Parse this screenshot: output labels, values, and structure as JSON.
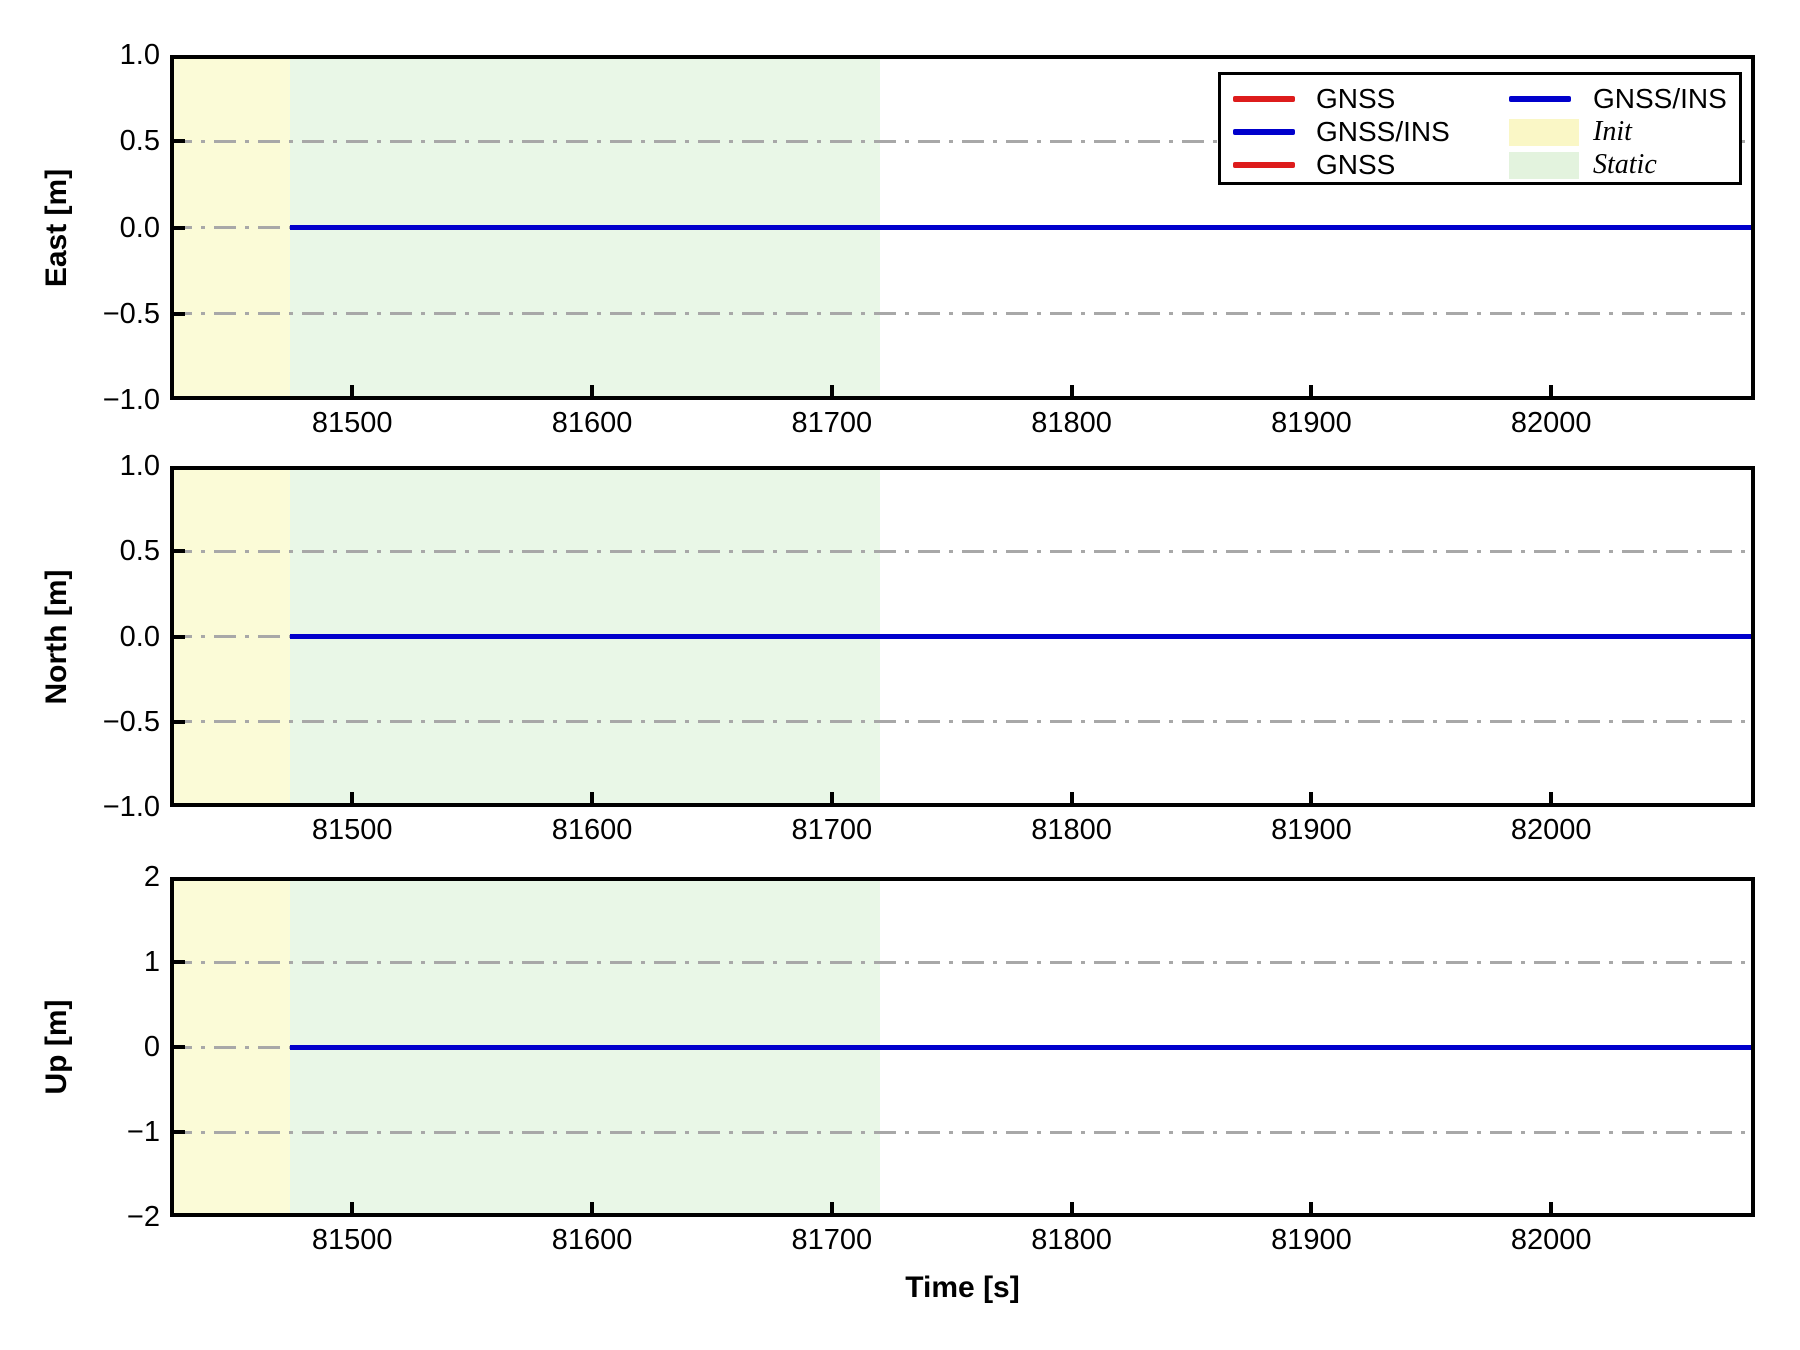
{
  "figure": {
    "background": "#ffffff",
    "colors": {
      "gnss_red": "#dd1c1c",
      "gnss_ins_blue": "#0000cc",
      "init_fill": "#fbfbd7",
      "static_fill": "#e9f7e7",
      "grid_gray": "#a8a8a8",
      "axis_black": "#000000"
    }
  },
  "chart_data": {
    "type": "line",
    "xlabel": "Time [s]",
    "xlim": [
      81424,
      82085
    ],
    "xticks": [
      81500,
      81600,
      81700,
      81800,
      81900,
      82000
    ],
    "xtick_labels": [
      "81500",
      "81600",
      "81700",
      "81800",
      "81900",
      "82000"
    ],
    "grid": "dash-dot horizontal",
    "regions": [
      {
        "name": "Init",
        "xstart": 81424,
        "xend": 81474,
        "color": "#fbfbd7"
      },
      {
        "name": "Static",
        "xstart": 81474,
        "xend": 81720,
        "color": "#e9f7e7"
      }
    ],
    "series": [
      {
        "name": "GNSS",
        "color": "#dd1c1c",
        "xstart": 81474,
        "xend": 82085,
        "value": 0,
        "note": "hidden beneath GNSS/INS line"
      },
      {
        "name": "GNSS/INS",
        "color": "#0000cc",
        "xstart": 81474,
        "xend": 82085,
        "value": 0
      }
    ],
    "subplots": [
      {
        "key": "east",
        "ylabel": "East [m]",
        "ylim": [
          -1.0,
          1.0
        ],
        "yticks": [
          1.0,
          0.5,
          0.0,
          -0.5,
          -1.0
        ],
        "ytick_labels": [
          "1.0",
          "0.5",
          "0.0",
          "−0.5",
          "−1.0"
        ],
        "gridlines": [
          0.5,
          0.0,
          -0.5
        ]
      },
      {
        "key": "north",
        "ylabel": "North [m]",
        "ylim": [
          -1.0,
          1.0
        ],
        "yticks": [
          1.0,
          0.5,
          0.0,
          -0.5,
          -1.0
        ],
        "ytick_labels": [
          "1.0",
          "0.5",
          "0.0",
          "−0.5",
          "−1.0"
        ],
        "gridlines": [
          0.5,
          0.0,
          -0.5
        ]
      },
      {
        "key": "up",
        "ylabel": "Up [m]",
        "ylim": [
          -2,
          2
        ],
        "yticks": [
          2,
          1,
          0,
          -1,
          -2
        ],
        "ytick_labels": [
          "2",
          "1",
          "0",
          "−1",
          "−2"
        ],
        "gridlines": [
          1,
          0,
          -1
        ]
      }
    ],
    "legend": {
      "position": "upper right of first subplot",
      "columns": 2,
      "entries": [
        {
          "label": "GNSS",
          "type": "line",
          "color": "#dd1c1c",
          "italic": false
        },
        {
          "label": "GNSS/INS",
          "type": "line",
          "color": "#0000cc",
          "italic": false
        },
        {
          "label": "GNSS",
          "type": "line",
          "color": "#dd1c1c",
          "italic": false
        },
        {
          "label": "GNSS/INS",
          "type": "line",
          "color": "#0000cc",
          "italic": false
        },
        {
          "label": "Init",
          "type": "patch",
          "color": "#faf7c6",
          "italic": true
        },
        {
          "label": "Static",
          "type": "patch",
          "color": "#e3f3de",
          "italic": true
        }
      ]
    }
  }
}
